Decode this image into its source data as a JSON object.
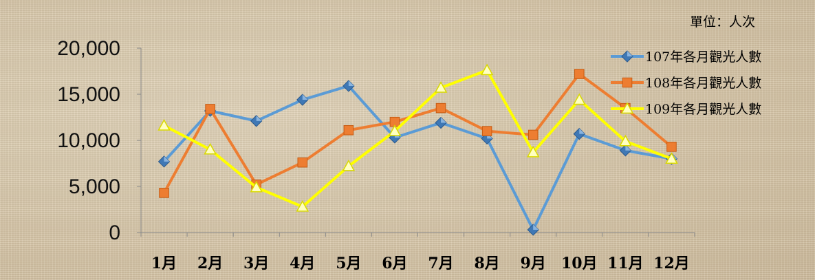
{
  "chart_data": {
    "type": "line",
    "unit_label": "單位：人次",
    "categories": [
      "1月",
      "2月",
      "3月",
      "4月",
      "5月",
      "6月",
      "7月",
      "8月",
      "9月",
      "10月",
      "11月",
      "12月"
    ],
    "y_ticks": [
      "0",
      "5,000",
      "10,000",
      "15,000",
      "20,000"
    ],
    "ylim": [
      0,
      20000
    ],
    "grid": false,
    "legend_position": "top-right",
    "series": [
      {
        "name": "107年各月觀光人數",
        "color": "#5b9bd5",
        "marker": "diamond",
        "values": [
          7700,
          13200,
          12100,
          14400,
          15900,
          10300,
          11900,
          10200,
          300,
          10700,
          8900,
          8000
        ]
      },
      {
        "name": "108年各月觀光人數",
        "color": "#ed7d31",
        "marker": "square",
        "values": [
          4300,
          13400,
          5200,
          7600,
          11100,
          12000,
          13500,
          11000,
          10600,
          17200,
          13500,
          9300
        ]
      },
      {
        "name": "109年各月觀光人數",
        "color": "#ffff00",
        "marker": "triangle",
        "values": [
          11600,
          9000,
          4900,
          2800,
          7200,
          11000,
          15700,
          17600,
          8700,
          14400,
          9900,
          8000
        ]
      }
    ]
  }
}
